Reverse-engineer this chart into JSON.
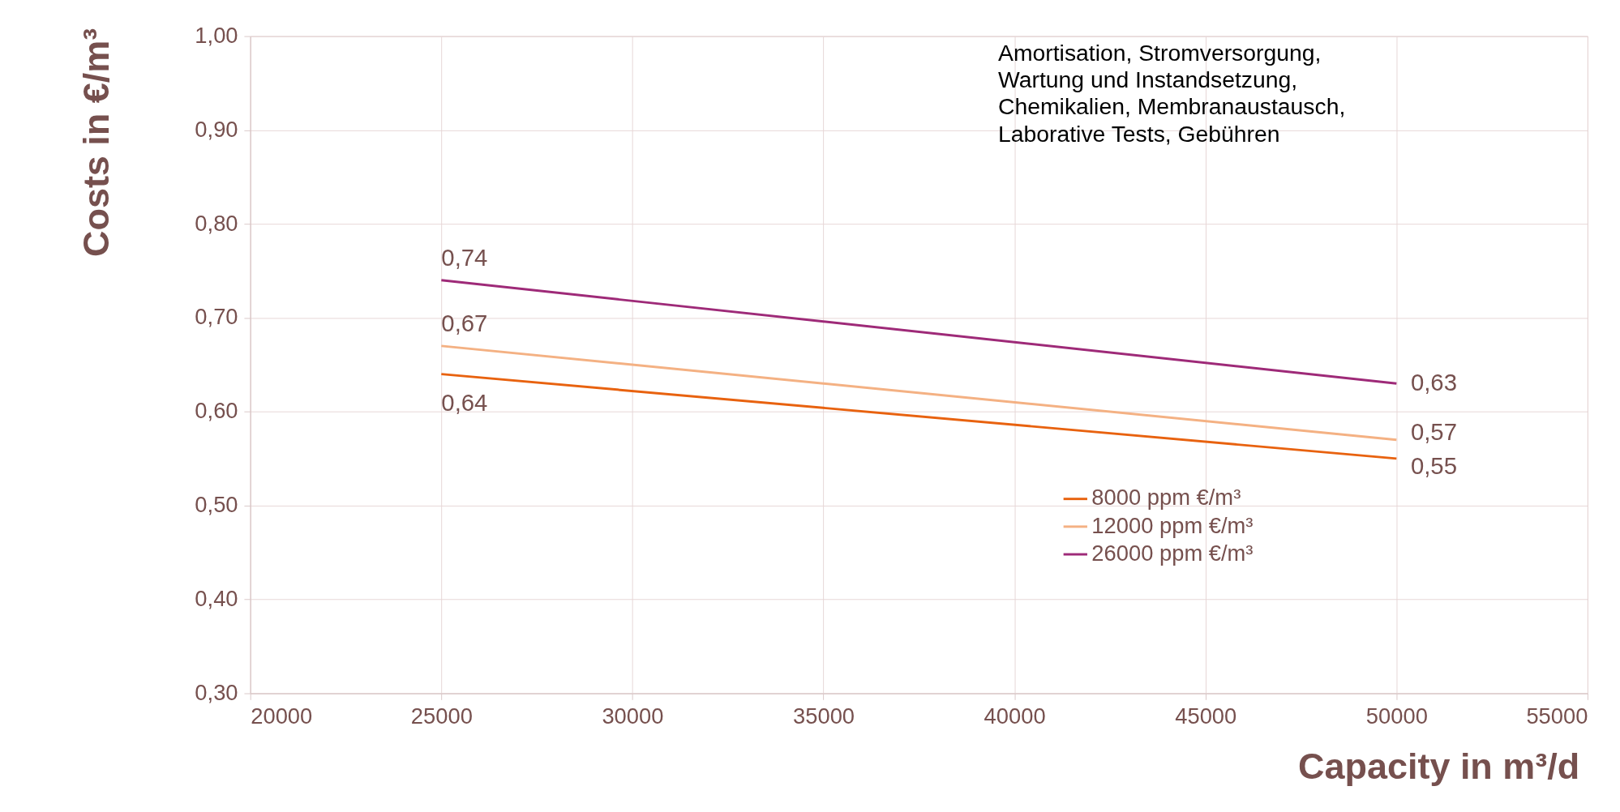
{
  "chart_data": {
    "type": "line",
    "xlabel": "Capacity in m³/d",
    "ylabel": "Costs in €/m³",
    "x": [
      25000,
      50000
    ],
    "series": [
      {
        "name": "8000 ppm €/m³",
        "color": "#e8620f",
        "values": [
          0.64,
          0.55
        ],
        "value_labels": [
          "0,64",
          "0,55"
        ]
      },
      {
        "name": "12000 ppm €/m³",
        "color": "#f4b183",
        "values": [
          0.67,
          0.57
        ],
        "value_labels": [
          "0,67",
          "0,57"
        ]
      },
      {
        "name": "26000 ppm €/m³",
        "color": "#9e2a78",
        "values": [
          0.74,
          0.63
        ],
        "value_labels": [
          "0,74",
          "0,63"
        ]
      }
    ],
    "xlim": [
      20000,
      55000
    ],
    "xticks": [
      20000,
      25000,
      30000,
      35000,
      40000,
      45000,
      50000,
      55000
    ],
    "ylim": [
      0.3,
      1.0
    ],
    "yticks": [
      {
        "value": 0.3,
        "label": "0,30"
      },
      {
        "value": 0.4,
        "label": "0,40"
      },
      {
        "value": 0.5,
        "label": "0,50"
      },
      {
        "value": 0.6,
        "label": "0,60"
      },
      {
        "value": 0.7,
        "label": "0,70"
      },
      {
        "value": 0.8,
        "label": "0,80"
      },
      {
        "value": 0.9,
        "label": "0,90"
      },
      {
        "value": 1.0,
        "label": "1,00"
      }
    ],
    "annotations": [
      "Amortisation, Stromversorgung,\nWartung und Instandsetzung,\nChemikalien, Membranaustausch,\nLaborative Tests, Gebühren"
    ],
    "grid": true,
    "legend": "right",
    "marker": "none",
    "line_style": "solid"
  }
}
